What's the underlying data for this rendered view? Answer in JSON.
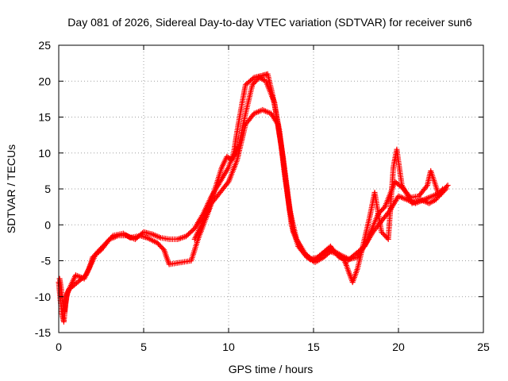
{
  "chart_data": {
    "type": "scatter",
    "title": "Day 081 of 2026, Sidereal Day-to-day VTEC variation (SDTVAR) for receiver sun6",
    "xlabel": "GPS time / hours",
    "ylabel": "SDTVAR / TECUs",
    "xlim": [
      0,
      25
    ],
    "ylim": [
      -15,
      25
    ],
    "xticks": [
      0,
      5,
      10,
      15,
      20,
      25
    ],
    "yticks": [
      -15,
      -10,
      -5,
      0,
      5,
      10,
      15,
      20,
      25
    ],
    "grid": true,
    "marker": "+",
    "color": "#ff0000",
    "series": [
      {
        "name": "track-a",
        "points": [
          [
            0.0,
            -8.0
          ],
          [
            0.1,
            -10.5
          ],
          [
            0.2,
            -12.5
          ],
          [
            0.3,
            -13.5
          ],
          [
            0.4,
            -11.0
          ],
          [
            0.5,
            -9.5
          ],
          [
            0.8,
            -8.0
          ],
          [
            1.0,
            -7.0
          ],
          [
            1.5,
            -7.5
          ],
          [
            1.8,
            -6.0
          ],
          [
            2.0,
            -4.5
          ],
          [
            2.5,
            -3.5
          ],
          [
            3.0,
            -2.0
          ],
          [
            3.5,
            -1.5
          ],
          [
            4.0,
            -1.5
          ],
          [
            4.5,
            -2.0
          ],
          [
            5.0,
            -1.0
          ],
          [
            5.5,
            -1.3
          ],
          [
            6.0,
            -1.8
          ],
          [
            6.5,
            -2.0
          ],
          [
            7.0,
            -2.0
          ],
          [
            7.5,
            -1.6
          ],
          [
            8.0,
            -0.5
          ],
          [
            8.5,
            1.5
          ],
          [
            9.0,
            4.0
          ],
          [
            9.5,
            6.0
          ],
          [
            10.0,
            8.0
          ],
          [
            10.3,
            10.0
          ],
          [
            10.5,
            13.0
          ],
          [
            10.8,
            17.0
          ],
          [
            11.0,
            19.5
          ],
          [
            11.5,
            20.5
          ],
          [
            12.0,
            20.8
          ],
          [
            12.3,
            21.0
          ],
          [
            12.6,
            18.0
          ],
          [
            13.0,
            13.0
          ],
          [
            13.3,
            7.0
          ],
          [
            13.6,
            2.0
          ],
          [
            14.0,
            -2.0
          ],
          [
            14.5,
            -4.0
          ],
          [
            15.0,
            -5.0
          ],
          [
            15.5,
            -4.0
          ],
          [
            16.0,
            -3.0
          ],
          [
            16.5,
            -4.5
          ],
          [
            17.0,
            -5.0
          ],
          [
            17.5,
            -4.0
          ],
          [
            18.0,
            -3.0
          ],
          [
            18.5,
            -1.0
          ],
          [
            19.0,
            0.5
          ],
          [
            19.5,
            2.0
          ],
          [
            20.0,
            4.0
          ],
          [
            20.5,
            3.5
          ],
          [
            21.0,
            3.0
          ],
          [
            21.5,
            3.5
          ],
          [
            22.0,
            4.0
          ],
          [
            22.5,
            4.5
          ],
          [
            22.9,
            5.5
          ]
        ]
      },
      {
        "name": "track-b",
        "points": [
          [
            0.05,
            -7.5
          ],
          [
            0.15,
            -9.0
          ],
          [
            0.25,
            -11.0
          ],
          [
            0.35,
            -12.0
          ],
          [
            0.45,
            -10.0
          ],
          [
            0.6,
            -9.0
          ],
          [
            1.2,
            -7.8
          ],
          [
            1.6,
            -7.0
          ],
          [
            2.2,
            -4.0
          ],
          [
            2.8,
            -2.5
          ],
          [
            3.2,
            -1.5
          ],
          [
            3.8,
            -1.2
          ],
          [
            4.2,
            -1.8
          ],
          [
            4.8,
            -1.5
          ],
          [
            5.2,
            -1.8
          ],
          [
            5.8,
            -2.5
          ],
          [
            6.2,
            -3.5
          ],
          [
            6.5,
            -5.5
          ],
          [
            7.8,
            -5.0
          ],
          [
            8.2,
            -2.0
          ],
          [
            8.6,
            0.5
          ],
          [
            9.0,
            3.0
          ],
          [
            9.5,
            4.5
          ],
          [
            10.0,
            6.0
          ],
          [
            10.5,
            9.0
          ],
          [
            11.0,
            14.0
          ],
          [
            11.5,
            15.5
          ],
          [
            12.0,
            16.0
          ],
          [
            12.5,
            15.5
          ],
          [
            12.9,
            14.0
          ],
          [
            13.2,
            9.5
          ],
          [
            13.5,
            4.0
          ],
          [
            13.8,
            -1.0
          ],
          [
            14.3,
            -3.5
          ],
          [
            14.8,
            -4.8
          ],
          [
            15.3,
            -4.5
          ],
          [
            15.8,
            -3.5
          ],
          [
            16.3,
            -4.0
          ],
          [
            16.8,
            -4.8
          ],
          [
            17.3,
            -8.0
          ],
          [
            17.6,
            -6.0
          ],
          [
            18.0,
            -2.0
          ],
          [
            18.3,
            1.0
          ],
          [
            18.6,
            4.5
          ],
          [
            19.0,
            -1.0
          ],
          [
            19.4,
            -2.0
          ],
          [
            19.7,
            8.0
          ],
          [
            19.9,
            10.5
          ],
          [
            20.2,
            5.5
          ],
          [
            20.8,
            3.0
          ],
          [
            21.3,
            3.5
          ],
          [
            21.8,
            3.0
          ],
          [
            22.2,
            3.5
          ],
          [
            22.6,
            5.0
          ]
        ]
      },
      {
        "name": "track-c",
        "points": [
          [
            8.0,
            -2.0
          ],
          [
            8.4,
            0.0
          ],
          [
            8.8,
            2.0
          ],
          [
            9.2,
            5.0
          ],
          [
            9.6,
            8.0
          ],
          [
            9.9,
            9.5
          ],
          [
            10.2,
            9.0
          ],
          [
            10.6,
            11.0
          ],
          [
            11.0,
            15.5
          ],
          [
            11.4,
            19.5
          ],
          [
            11.8,
            20.5
          ],
          [
            12.2,
            20.0
          ],
          [
            12.7,
            17.0
          ],
          [
            13.1,
            11.0
          ],
          [
            13.4,
            5.5
          ],
          [
            13.7,
            0.0
          ],
          [
            14.1,
            -3.0
          ],
          [
            14.6,
            -4.5
          ],
          [
            15.1,
            -5.2
          ],
          [
            15.6,
            -4.5
          ],
          [
            16.1,
            -3.5
          ],
          [
            16.6,
            -4.2
          ],
          [
            17.1,
            -4.8
          ],
          [
            17.6,
            -4.5
          ],
          [
            18.1,
            -2.5
          ],
          [
            18.8,
            1.5
          ],
          [
            19.2,
            2.5
          ],
          [
            19.8,
            6.0
          ],
          [
            20.3,
            5.0
          ],
          [
            20.7,
            3.8
          ],
          [
            21.2,
            4.0
          ],
          [
            21.7,
            5.5
          ],
          [
            21.9,
            7.5
          ],
          [
            22.4,
            4.0
          ],
          [
            22.8,
            5.0
          ]
        ]
      }
    ]
  }
}
